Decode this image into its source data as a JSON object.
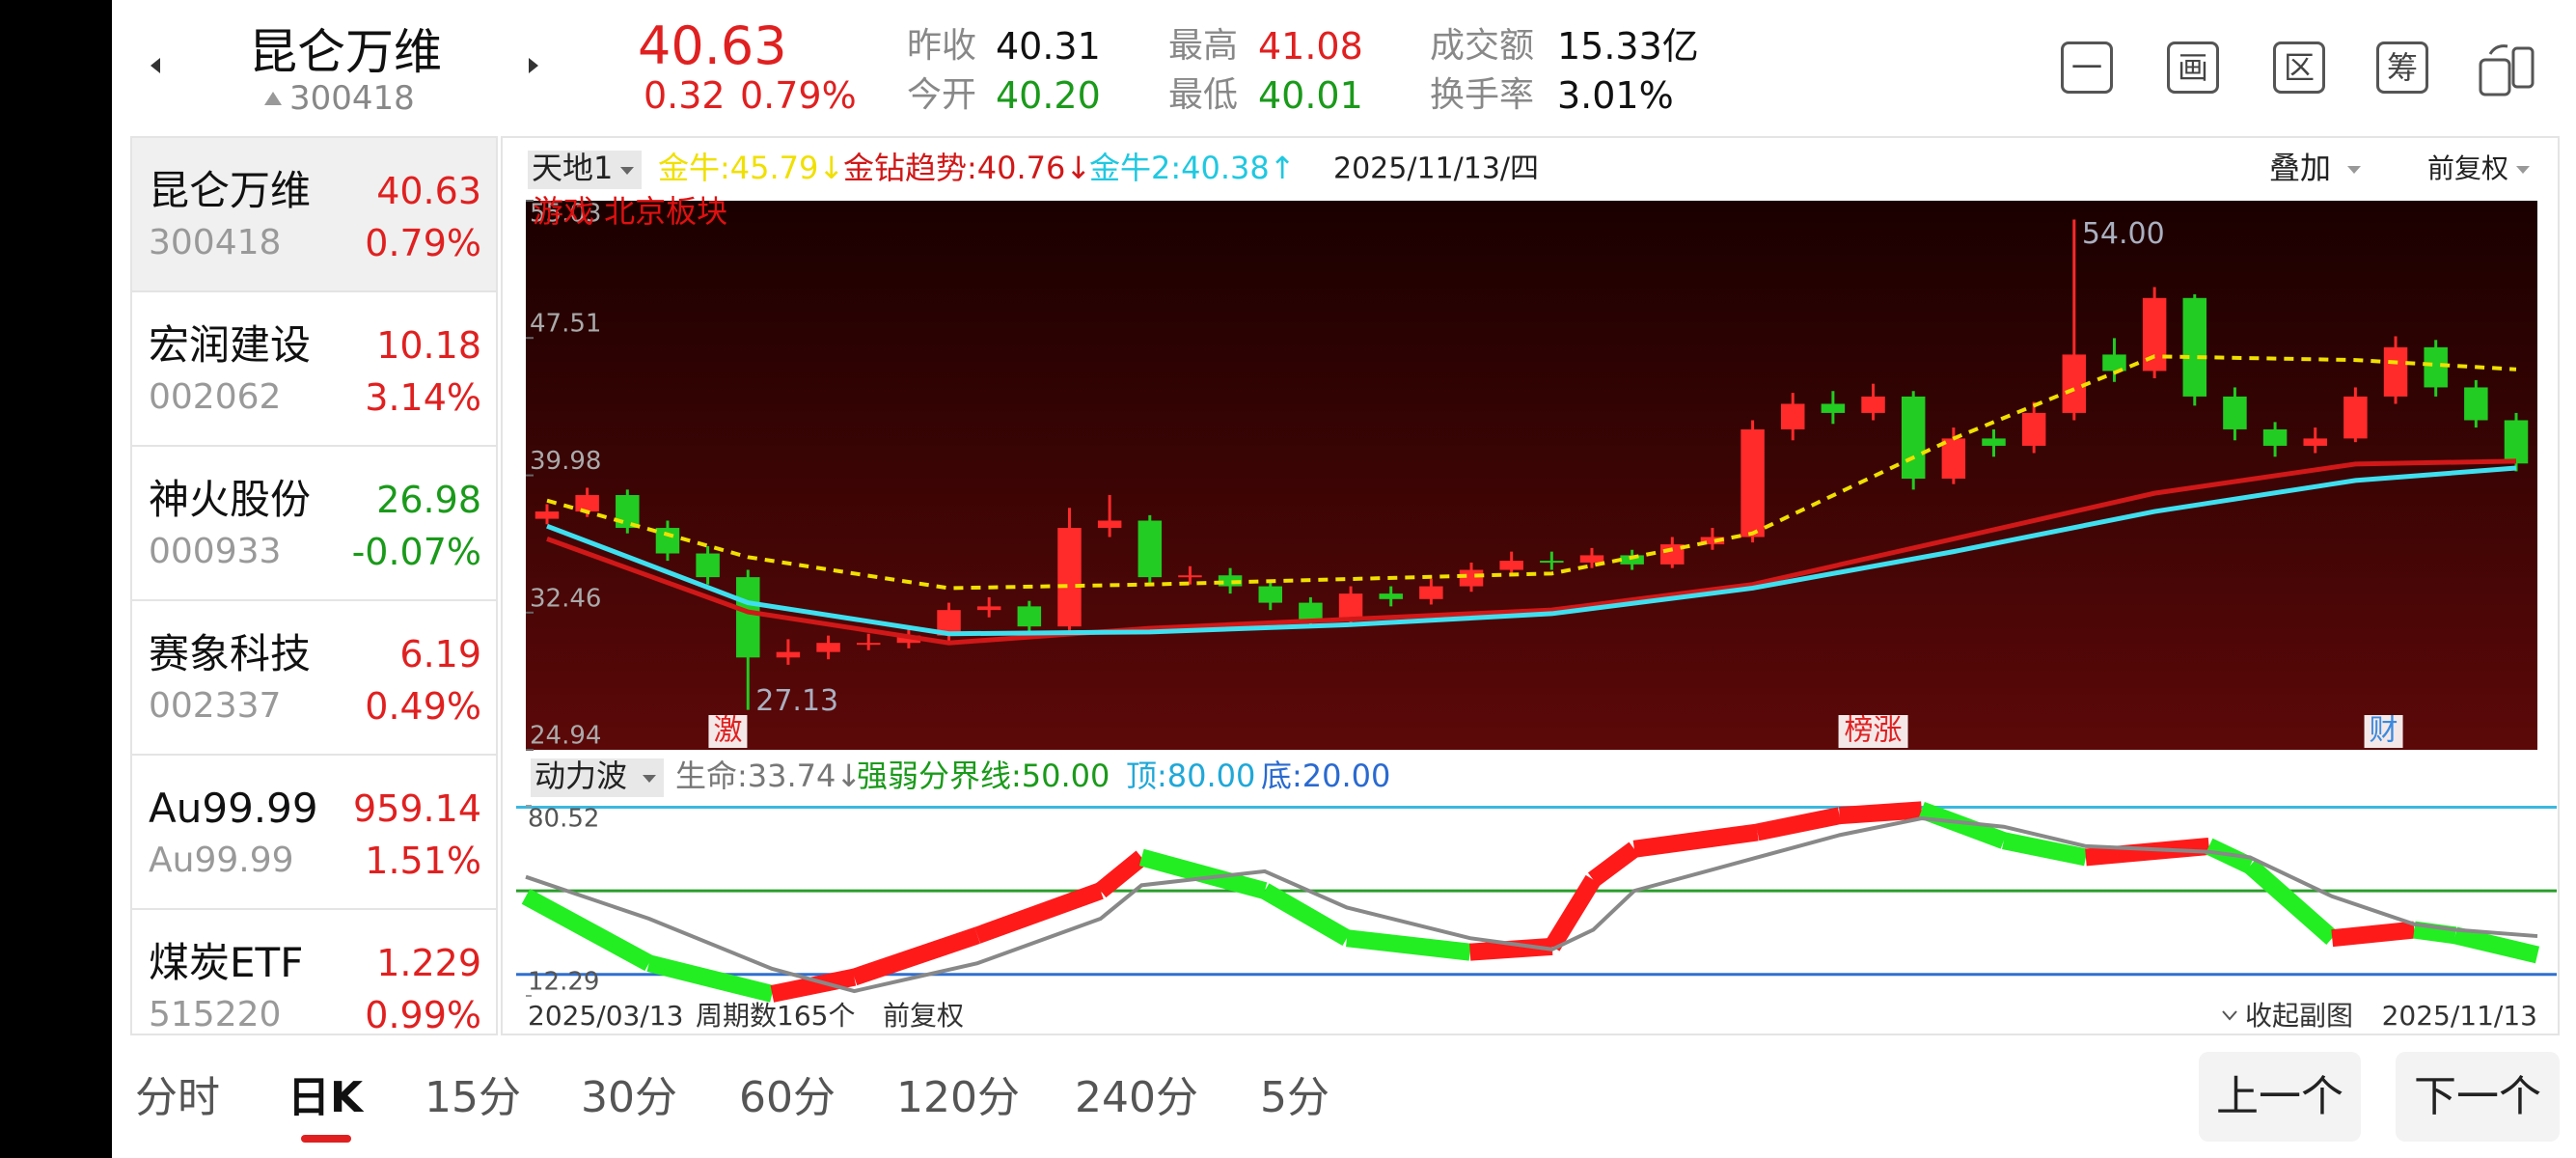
{
  "header": {
    "name": "昆仑万维",
    "code": "300418",
    "price": "40.63",
    "change": "0.32",
    "change_pct": "0.79%",
    "stats": [
      {
        "label": "昨收",
        "value": "40.31",
        "color": "#111111"
      },
      {
        "label": "今开",
        "value": "40.20",
        "color": "#1a9a1a"
      },
      {
        "label": "最高",
        "value": "41.08",
        "color": "#e02020"
      },
      {
        "label": "最低",
        "value": "40.01",
        "color": "#1a9a1a"
      },
      {
        "label": "成交额",
        "value": "15.33亿",
        "color": "#111111"
      },
      {
        "label": "换手率",
        "value": "3.01%",
        "color": "#111111"
      }
    ],
    "icons": [
      "一",
      "画",
      "区",
      "筹"
    ]
  },
  "watchlist": [
    {
      "name": "昆仑万维",
      "price": "40.63",
      "code": "300418",
      "change": "0.79%",
      "color": "#e02020"
    },
    {
      "name": "宏润建设",
      "price": "10.18",
      "code": "002062",
      "change": "3.14%",
      "color": "#e02020"
    },
    {
      "name": "神火股份",
      "price": "26.98",
      "code": "000933",
      "change": "-0.07%",
      "color": "#1a9a1a"
    },
    {
      "name": "赛象科技",
      "price": "6.19",
      "code": "002337",
      "change": "0.49%",
      "color": "#e02020"
    },
    {
      "name": "Au99.99",
      "price": "959.14",
      "code": "Au99.99",
      "change": "1.51%",
      "color": "#e02020"
    },
    {
      "name": "煤炭ETF",
      "price": "1.229",
      "code": "515220",
      "change": "0.99%",
      "color": "#e02020"
    }
  ],
  "chart_data": [
    {
      "type": "candlestick",
      "menu": "天地1",
      "legend": [
        {
          "text": "金牛:45.79↓",
          "color": "#f0e000"
        },
        {
          "text": "金钻趋势:40.76↓",
          "color": "#d01818"
        },
        {
          "text": "金牛2:40.38↑",
          "color": "#20c8e0"
        }
      ],
      "date": "2025/11/13/四",
      "overlay": "叠加",
      "adjust": "前复权",
      "sector": "游戏 北京板块",
      "xlim": [
        0,
        49
      ],
      "ylim": [
        24.94,
        55.03
      ],
      "yticks": [
        24.94,
        32.46,
        39.98,
        47.51,
        55.03
      ],
      "up_color": "#ff2a2a",
      "down_color": "#22cc22",
      "open": [
        37.6,
        38.0,
        38.9,
        37.1,
        35.7,
        34.4,
        30.0,
        30.3,
        30.8,
        30.8,
        31.2,
        32.6,
        32.8,
        31.7,
        37.1,
        37.5,
        34.4,
        34.5,
        33.9,
        33.0,
        32.1,
        33.5,
        33.2,
        33.9,
        34.8,
        35.3,
        35.2,
        35.6,
        35.1,
        36.2,
        36.6,
        42.5,
        43.9,
        43.4,
        44.3,
        39.8,
        42.0,
        41.6,
        43.4,
        46.6,
        45.7,
        49.7,
        44.3,
        42.5,
        41.6,
        42.0,
        44.3,
        47.0,
        44.8,
        43.0
      ],
      "close": [
        38.0,
        38.9,
        37.1,
        35.7,
        34.4,
        30.0,
        30.3,
        30.8,
        30.8,
        31.2,
        32.6,
        32.8,
        31.7,
        37.1,
        37.5,
        34.4,
        34.5,
        33.9,
        33.0,
        32.1,
        33.5,
        33.2,
        33.9,
        34.8,
        35.3,
        35.2,
        35.6,
        35.1,
        36.2,
        36.6,
        42.5,
        43.9,
        43.4,
        44.3,
        39.8,
        42.0,
        41.6,
        43.4,
        46.6,
        45.7,
        49.7,
        44.3,
        42.5,
        41.6,
        42.0,
        44.3,
        47.0,
        44.8,
        43.0,
        40.63
      ],
      "high": [
        38.4,
        39.3,
        39.2,
        37.5,
        36.1,
        34.8,
        31.0,
        31.2,
        31.3,
        31.6,
        33.0,
        33.3,
        33.1,
        38.2,
        38.9,
        37.8,
        35.0,
        34.9,
        34.2,
        33.3,
        33.9,
        33.9,
        34.3,
        35.2,
        35.8,
        35.8,
        36.0,
        35.9,
        36.6,
        37.1,
        43.0,
        44.5,
        44.6,
        45.0,
        44.6,
        42.6,
        42.5,
        44.0,
        54.0,
        47.5,
        50.3,
        49.9,
        44.8,
        42.9,
        42.6,
        44.8,
        47.6,
        47.4,
        45.2,
        43.4
      ],
      "low": [
        37.3,
        37.7,
        36.8,
        35.3,
        34.0,
        27.13,
        29.6,
        29.9,
        30.4,
        30.5,
        30.9,
        32.2,
        31.3,
        31.4,
        36.6,
        34.0,
        34.0,
        33.5,
        32.6,
        31.7,
        31.8,
        32.8,
        32.9,
        33.6,
        34.5,
        34.8,
        34.9,
        34.8,
        34.9,
        35.9,
        36.3,
        41.9,
        42.8,
        43.0,
        39.2,
        39.5,
        41.0,
        41.2,
        43.0,
        45.1,
        45.3,
        43.8,
        41.9,
        41.0,
        41.2,
        41.8,
        43.9,
        44.3,
        42.6,
        40.2
      ],
      "lines": [
        {
          "color": "#f0e000",
          "dashed": true,
          "x": [
            0,
            5,
            10,
            15,
            20,
            25,
            30,
            35,
            40,
            45,
            49
          ],
          "values": [
            38.6,
            35.5,
            33.8,
            34.0,
            34.3,
            34.6,
            36.8,
            42.0,
            46.5,
            46.3,
            45.79
          ]
        },
        {
          "color": "#d01818",
          "dashed": false,
          "x": [
            0,
            5,
            10,
            15,
            20,
            25,
            30,
            35,
            40,
            45,
            49
          ],
          "values": [
            36.5,
            32.5,
            30.8,
            31.6,
            32.1,
            32.6,
            34.0,
            36.5,
            39.0,
            40.6,
            40.76
          ]
        },
        {
          "color": "#3ee0f0",
          "dashed": false,
          "x": [
            0,
            5,
            10,
            15,
            20,
            25,
            30,
            35,
            40,
            45,
            49
          ],
          "values": [
            37.2,
            33.0,
            31.3,
            31.4,
            31.8,
            32.4,
            33.8,
            35.8,
            38.0,
            39.7,
            40.38
          ]
        }
      ],
      "annotations": [
        {
          "text": "54.00",
          "x": 38,
          "y": 54
        },
        {
          "text": "27.13",
          "x": 5,
          "y": 27.13
        }
      ],
      "markers": [
        {
          "text": "激",
          "x": 4.5,
          "color": "#e02020"
        },
        {
          "text": "榜涨",
          "x": 33,
          "color": "#e02020"
        },
        {
          "text": "财",
          "x": 45.7,
          "color": "#3a8ae0"
        }
      ]
    },
    {
      "type": "oscillator",
      "menu": "动力波",
      "legend": [
        {
          "text": "生命:33.74↓",
          "color": "#777777"
        },
        {
          "text": "强弱分界线:50.00",
          "color": "#1a9a1a"
        },
        {
          "text": "顶:80.00",
          "color": "#20a8d8"
        },
        {
          "text": "底:20.00",
          "color": "#2a6ad0"
        }
      ],
      "xlim": [
        0,
        49
      ],
      "ylim": [
        12.29,
        80.52
      ],
      "yticks": [
        12.29,
        80.52
      ],
      "levels": [
        {
          "value": 80,
          "color": "#3ab8e0"
        },
        {
          "value": 50,
          "color": "#2a9d2a"
        },
        {
          "value": 20,
          "color": "#2f6fd0"
        }
      ],
      "up_color": "#ff1a1a",
      "down_color": "#22ee22",
      "x": [
        0,
        3,
        6,
        8,
        11,
        14,
        15,
        18,
        20,
        23,
        25,
        26,
        27,
        30,
        32,
        34,
        36,
        38,
        41,
        42,
        44,
        46,
        47,
        49
      ],
      "series": [
        {
          "style": "blocks",
          "values": [
            48,
            24,
            13,
            19,
            34,
            50,
            62,
            50,
            33,
            28,
            30,
            54,
            65,
            71,
            77,
            79,
            68,
            62,
            66,
            59,
            33,
            36,
            34,
            27
          ]
        },
        {
          "style": "line",
          "color": "#888888",
          "values": [
            55,
            40,
            22,
            14,
            24,
            40,
            52,
            57,
            44,
            33,
            29,
            36,
            50,
            62,
            70,
            76,
            73,
            66,
            64,
            62,
            48,
            38,
            36,
            33.74
          ]
        }
      ]
    }
  ],
  "footer": {
    "start": "2025/03/13",
    "periods": "周期数165个",
    "adjust": "前复权",
    "collapse": "收起副图",
    "end": "2025/11/13"
  },
  "tabs": [
    "分时",
    "日K",
    "15分",
    "30分",
    "60分",
    "120分",
    "240分",
    "5分"
  ],
  "buttons": [
    "上一个",
    "下一个"
  ]
}
